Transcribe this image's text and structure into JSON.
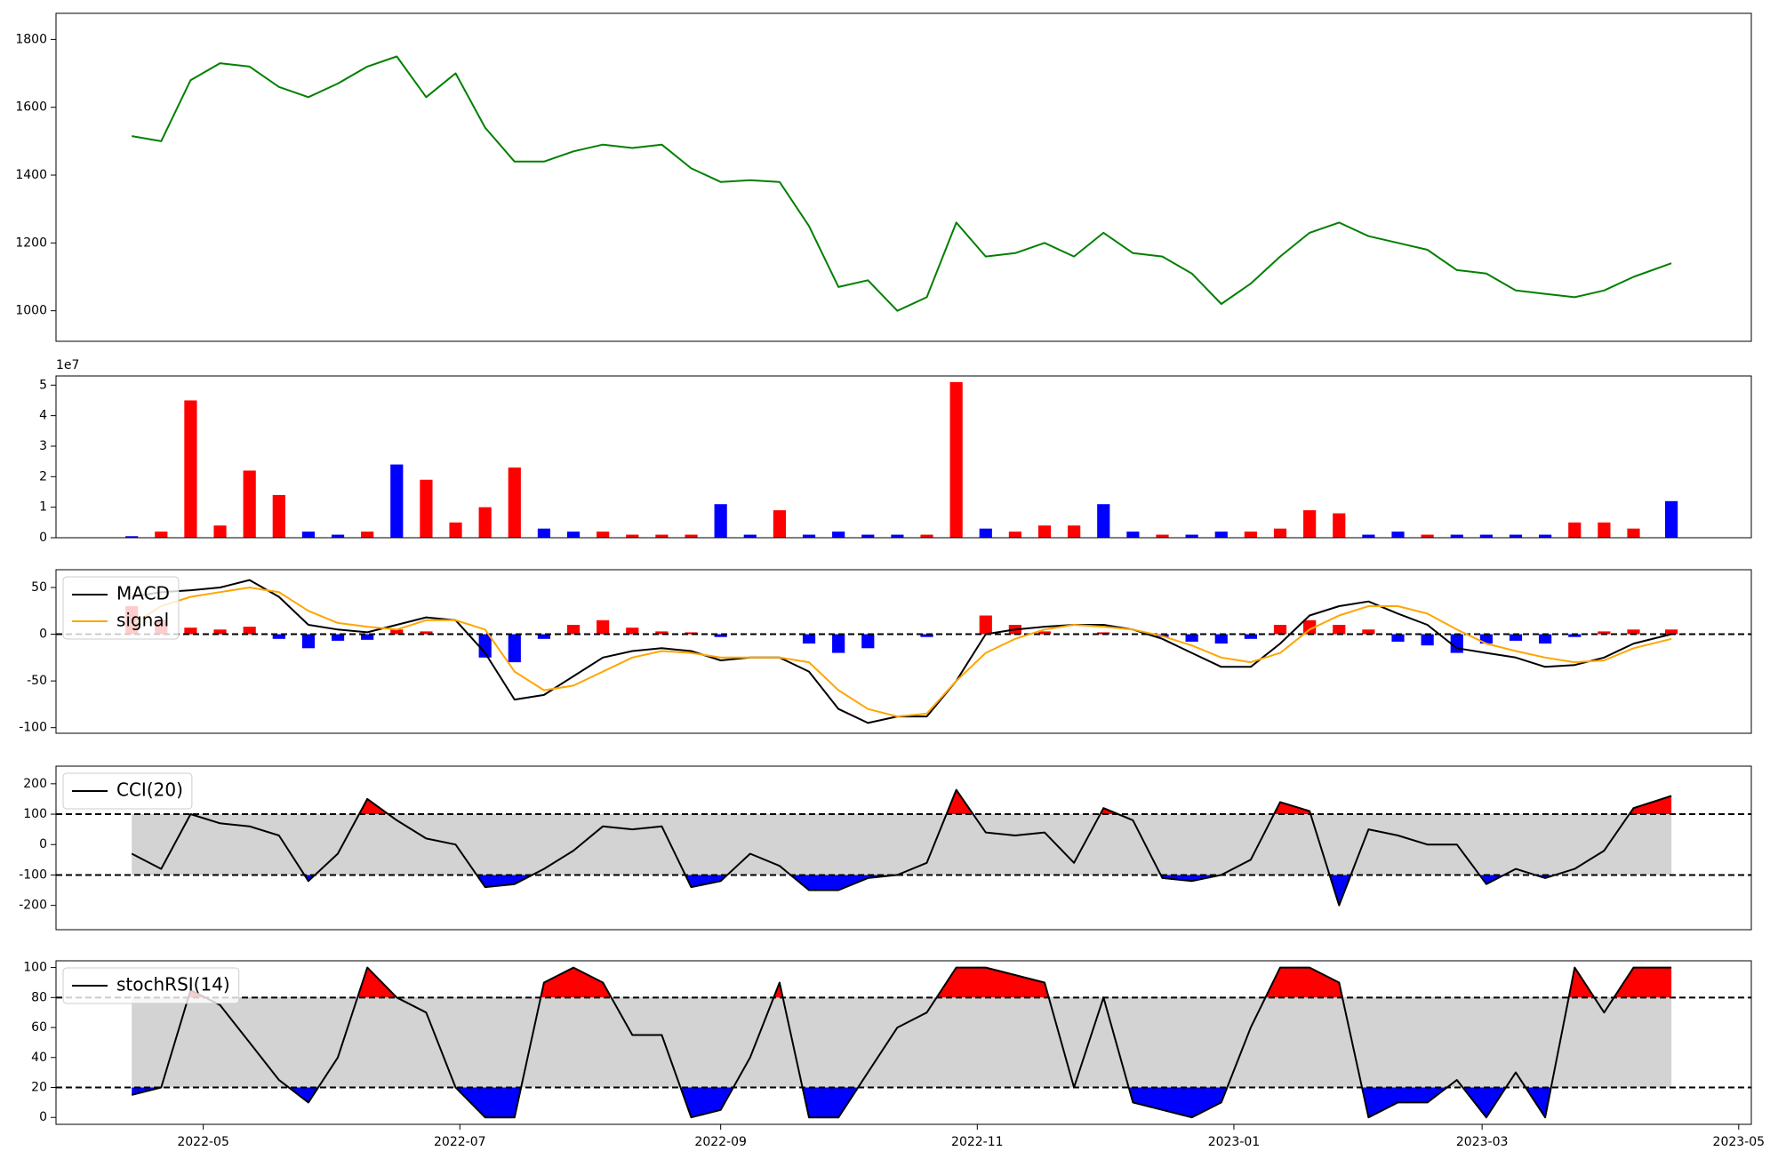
{
  "chart_data": [
    {
      "type": "line",
      "x": [
        -17,
        -10,
        -3,
        4,
        11,
        18,
        25,
        32,
        39,
        46,
        53,
        60,
        67,
        74,
        81,
        88,
        95,
        102,
        109,
        116,
        123,
        130,
        137,
        144,
        151,
        158,
        165,
        172,
        179,
        186,
        193,
        200,
        207,
        214,
        221,
        228,
        235,
        242,
        249,
        256,
        263,
        270,
        277,
        284,
        291,
        298,
        305,
        312,
        319,
        326,
        333,
        340,
        349
      ],
      "series": [
        {
          "color": "green",
          "values": [
            1515,
            1500,
            1680,
            1730,
            1720,
            1660,
            1630,
            1670,
            1720,
            1750,
            1630,
            1700,
            1540,
            1440,
            1440,
            1470,
            1490,
            1480,
            1490,
            1420,
            1380,
            1385,
            1380,
            1250,
            1070,
            1090,
            1000,
            1040,
            1260,
            1160,
            1170,
            1200,
            1160,
            1230,
            1170,
            1160,
            1110,
            1020,
            1080,
            1160,
            1230,
            1260,
            1220,
            1200,
            1180,
            1120,
            1110,
            1060,
            1050,
            1040,
            1060,
            1100,
            1140
          ]
        }
      ],
      "xlim": [
        -35,
        368
      ],
      "ylim": [
        910,
        1877
      ],
      "yticks": [
        1000,
        1200,
        1400,
        1600,
        1800
      ]
    },
    {
      "type": "bar",
      "x": [
        -17,
        -10,
        -3,
        4,
        11,
        18,
        25,
        32,
        39,
        46,
        53,
        60,
        67,
        74,
        81,
        88,
        95,
        102,
        109,
        116,
        123,
        130,
        137,
        144,
        151,
        158,
        165,
        172,
        179,
        186,
        193,
        200,
        207,
        214,
        221,
        228,
        235,
        242,
        249,
        256,
        263,
        270,
        277,
        284,
        291,
        298,
        305,
        312,
        319,
        326,
        333,
        340,
        349
      ],
      "values": [
        0.05,
        0.2,
        4.5,
        0.4,
        2.2,
        1.4,
        0.2,
        0.1,
        0.2,
        2.4,
        1.9,
        0.5,
        1.0,
        2.3,
        0.3,
        0.2,
        0.2,
        0.1,
        0.1,
        0.1,
        1.1,
        0.1,
        0.9,
        0.1,
        0.2,
        0.1,
        0.1,
        0.1,
        5.1,
        0.3,
        0.2,
        0.4,
        0.4,
        1.1,
        0.2,
        0.1,
        0.1,
        0.2,
        0.2,
        0.3,
        0.9,
        0.8,
        0.1,
        0.2,
        0.1,
        0.1,
        0.1,
        0.1,
        0.1,
        0.5,
        0.5,
        0.3,
        1.2
      ],
      "colors": [
        "blue",
        "red",
        "red",
        "red",
        "red",
        "red",
        "blue",
        "blue",
        "red",
        "blue",
        "red",
        "red",
        "red",
        "red",
        "blue",
        "blue",
        "red",
        "red",
        "red",
        "red",
        "blue",
        "blue",
        "red",
        "blue",
        "blue",
        "blue",
        "blue",
        "red",
        "red",
        "blue",
        "red",
        "red",
        "red",
        "blue",
        "blue",
        "red",
        "blue",
        "blue",
        "red",
        "red",
        "red",
        "red",
        "blue",
        "blue",
        "red",
        "blue",
        "blue",
        "blue",
        "blue",
        "red",
        "red",
        "red",
        "blue"
      ],
      "offset_label": "1e7",
      "xlim": [
        -35,
        368
      ],
      "ylim": [
        0,
        5.3
      ],
      "yticks": [
        0,
        1,
        2,
        3,
        4,
        5
      ]
    },
    {
      "type": "macd",
      "x": [
        -17,
        -10,
        -3,
        4,
        11,
        18,
        25,
        32,
        39,
        46,
        53,
        60,
        67,
        74,
        81,
        88,
        95,
        102,
        109,
        116,
        123,
        130,
        137,
        144,
        151,
        158,
        165,
        172,
        179,
        186,
        193,
        200,
        207,
        214,
        221,
        228,
        235,
        242,
        249,
        256,
        263,
        270,
        277,
        284,
        291,
        298,
        305,
        312,
        319,
        326,
        333,
        340,
        349
      ],
      "series": [
        {
          "name": "MACD",
          "color": "black",
          "values": [
            40,
            45,
            47,
            50,
            58,
            40,
            10,
            5,
            2,
            10,
            18,
            15,
            -20,
            -70,
            -65,
            -45,
            -25,
            -18,
            -15,
            -18,
            -28,
            -25,
            -25,
            -40,
            -80,
            -95,
            -88,
            -88,
            -50,
            0,
            5,
            8,
            10,
            10,
            5,
            -5,
            -20,
            -35,
            -35,
            -10,
            20,
            30,
            35,
            22,
            10,
            -15,
            -20,
            -25,
            -35,
            -33,
            -25,
            -10,
            0
          ]
        },
        {
          "name": "signal",
          "color": "orange",
          "values": [
            10,
            30,
            40,
            45,
            50,
            45,
            25,
            12,
            8,
            5,
            15,
            15,
            5,
            -40,
            -60,
            -55,
            -40,
            -25,
            -18,
            -20,
            -25,
            -25,
            -25,
            -30,
            -60,
            -80,
            -88,
            -85,
            -50,
            -20,
            -5,
            5,
            10,
            8,
            5,
            -2,
            -12,
            -25,
            -30,
            -20,
            5,
            20,
            30,
            30,
            22,
            5,
            -10,
            -18,
            -25,
            -30,
            -28,
            -15,
            -5
          ]
        }
      ],
      "histogram": {
        "pos_color": "red",
        "neg_color": "blue",
        "values": [
          30,
          15,
          7,
          5,
          8,
          -5,
          -15,
          -7,
          -6,
          5,
          3,
          0,
          -25,
          -30,
          -5,
          10,
          15,
          7,
          3,
          2,
          -3,
          0,
          0,
          -10,
          -20,
          -15,
          0,
          -3,
          0,
          20,
          10,
          3,
          0,
          2,
          0,
          -3,
          -8,
          -10,
          -5,
          10,
          15,
          10,
          5,
          -8,
          -12,
          -20,
          -10,
          -7,
          -10,
          -3,
          3,
          5,
          5
        ]
      },
      "hlines": [
        0
      ],
      "legend": "upper left",
      "xlim": [
        -35,
        368
      ],
      "ylim": [
        -106,
        69
      ],
      "yticks": [
        -100,
        -50,
        0,
        50
      ]
    },
    {
      "type": "band",
      "x": [
        -17,
        -10,
        -3,
        4,
        11,
        18,
        25,
        32,
        39,
        46,
        53,
        60,
        67,
        74,
        81,
        88,
        95,
        102,
        109,
        116,
        123,
        130,
        137,
        144,
        151,
        158,
        165,
        172,
        179,
        186,
        193,
        200,
        207,
        214,
        221,
        228,
        235,
        242,
        249,
        256,
        263,
        270,
        277,
        284,
        291,
        298,
        305,
        312,
        319,
        326,
        333,
        340,
        349
      ],
      "series": [
        {
          "name": "CCI(20)",
          "color": "black",
          "values": [
            -30,
            -80,
            100,
            70,
            60,
            30,
            -120,
            -30,
            150,
            80,
            20,
            0,
            -140,
            -130,
            -80,
            -20,
            60,
            50,
            60,
            -140,
            -120,
            -30,
            -70,
            -150,
            -150,
            -110,
            -100,
            -60,
            180,
            40,
            30,
            40,
            -60,
            120,
            80,
            -110,
            -120,
            -100,
            -50,
            140,
            110,
            -200,
            50,
            30,
            0,
            0,
            -130,
            -80,
            -110,
            -80,
            -20,
            120,
            160
          ]
        }
      ],
      "hlines": [
        100,
        -100
      ],
      "band_color": "lightgray",
      "above_color": "red",
      "below_color": "blue",
      "legend": "upper left",
      "xlim": [
        -35,
        368
      ],
      "ylim": [
        -280,
        258
      ],
      "yticks": [
        -200,
        -100,
        0,
        100,
        200
      ]
    },
    {
      "type": "band",
      "x": [
        -17,
        -10,
        -3,
        4,
        11,
        18,
        25,
        32,
        39,
        46,
        53,
        60,
        67,
        74,
        81,
        88,
        95,
        102,
        109,
        116,
        123,
        130,
        137,
        144,
        151,
        158,
        165,
        172,
        179,
        186,
        193,
        200,
        207,
        214,
        221,
        228,
        235,
        242,
        249,
        256,
        263,
        270,
        277,
        284,
        291,
        298,
        305,
        312,
        319,
        326,
        333,
        340,
        349
      ],
      "series": [
        {
          "name": "stochRSI(14)",
          "color": "black",
          "values": [
            15,
            20,
            85,
            75,
            50,
            25,
            10,
            40,
            100,
            80,
            70,
            20,
            0,
            0,
            90,
            100,
            90,
            55,
            55,
            0,
            5,
            40,
            90,
            0,
            0,
            30,
            60,
            70,
            100,
            100,
            95,
            90,
            20,
            80,
            10,
            5,
            0,
            10,
            60,
            100,
            100,
            90,
            0,
            10,
            10,
            25,
            0,
            30,
            0,
            100,
            70,
            100,
            100
          ]
        }
      ],
      "hlines": [
        80,
        20
      ],
      "band_color": "lightgray",
      "above_color": "red",
      "below_color": "blue",
      "legend": "upper left",
      "xlim": [
        -35,
        368
      ],
      "ylim": [
        -4.6,
        104.5
      ],
      "yticks": [
        0,
        20,
        40,
        60,
        80,
        100
      ],
      "xticks": [
        {
          "value": 0,
          "label": "2022-05"
        },
        {
          "value": 61,
          "label": "2022-07"
        },
        {
          "value": 123,
          "label": "2022-09"
        },
        {
          "value": 184,
          "label": "2022-11"
        },
        {
          "value": 245,
          "label": "2023-01"
        },
        {
          "value": 304,
          "label": "2023-03"
        },
        {
          "value": 365,
          "label": "2023-05"
        }
      ]
    }
  ]
}
